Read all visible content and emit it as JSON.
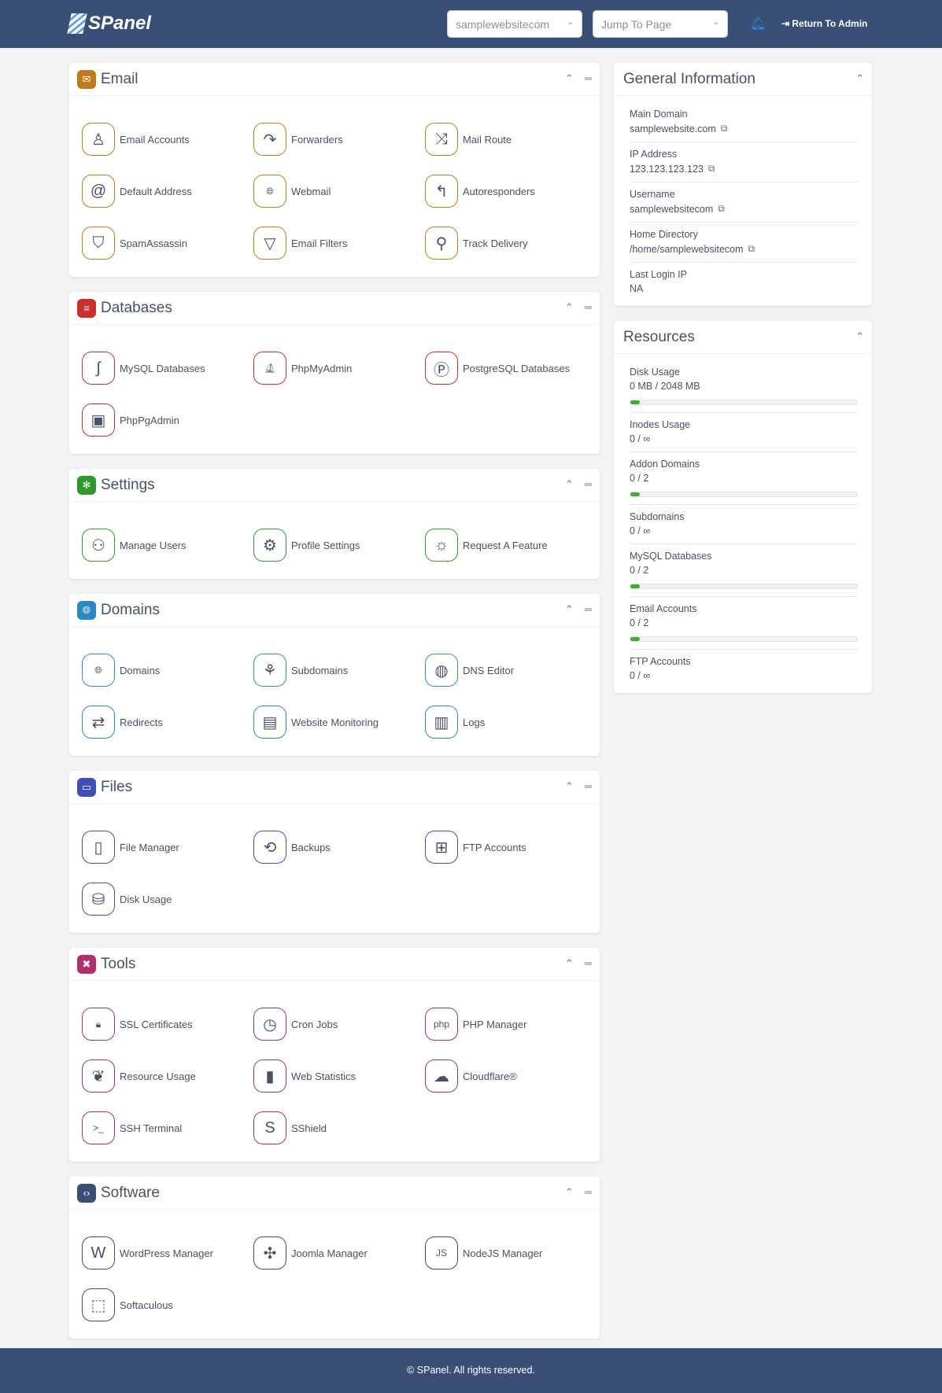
{
  "header": {
    "logo": "SPanel",
    "domain_select": "samplewebsitecom",
    "jump_select": "Jump To Page",
    "return_label": "Return To Admin"
  },
  "sections": [
    {
      "title": "Email",
      "color": "#c07a1a",
      "icon": "envelope-icon",
      "items": [
        {
          "label": "Email Accounts",
          "icon": "user-icon"
        },
        {
          "label": "Forwarders",
          "icon": "forward-arrow-icon"
        },
        {
          "label": "Mail Route",
          "icon": "route-icon"
        },
        {
          "label": "Default Address",
          "icon": "at-icon"
        },
        {
          "label": "Webmail",
          "icon": "globe-icon"
        },
        {
          "label": "Autoresponders",
          "icon": "reply-icon"
        },
        {
          "label": "SpamAssassin",
          "icon": "shield-alert-icon"
        },
        {
          "label": "Email Filters",
          "icon": "filter-icon"
        },
        {
          "label": "Track Delivery",
          "icon": "search-icon"
        }
      ]
    },
    {
      "title": "Databases",
      "color": "#c9302c",
      "icon": "database-icon",
      "items": [
        {
          "label": "MySQL Databases",
          "icon": "dolphin-icon"
        },
        {
          "label": "PhpMyAdmin",
          "icon": "sail-icon"
        },
        {
          "label": "PostgreSQL Databases",
          "icon": "elephant-icon"
        },
        {
          "label": "PhpPgAdmin",
          "icon": "phppgadmin-icon"
        }
      ]
    },
    {
      "title": "Settings",
      "color": "#2e9a2e",
      "icon": "gear-icon",
      "items": [
        {
          "label": "Manage Users",
          "icon": "users-icon"
        },
        {
          "label": "Profile Settings",
          "icon": "user-gear-icon"
        },
        {
          "label": "Request A Feature",
          "icon": "lightbulb-icon"
        }
      ]
    },
    {
      "title": "Domains",
      "color": "#2b8ac4",
      "icon": "globe-icon",
      "items": [
        {
          "label": "Domains",
          "icon": "globe-icon"
        },
        {
          "label": "Subdomains",
          "icon": "sitemap-icon"
        },
        {
          "label": "DNS Editor",
          "icon": "globe-edit-icon"
        },
        {
          "label": "Redirects",
          "icon": "redirect-icon"
        },
        {
          "label": "Website Monitoring",
          "icon": "monitor-icon"
        },
        {
          "label": "Logs",
          "icon": "log-icon"
        }
      ]
    },
    {
      "title": "Files",
      "color": "#3f4fb5",
      "icon": "folder-icon",
      "items": [
        {
          "label": "File Manager",
          "icon": "file-manager-icon"
        },
        {
          "label": "Backups",
          "icon": "backup-icon"
        },
        {
          "label": "FTP Accounts",
          "icon": "network-icon"
        },
        {
          "label": "Disk Usage",
          "icon": "disk-icon"
        }
      ]
    },
    {
      "title": "Tools",
      "color": "#b0306e",
      "icon": "tools-icon",
      "items": [
        {
          "label": "SSL Certificates",
          "icon": "lock-icon"
        },
        {
          "label": "Cron Jobs",
          "icon": "clock-icon"
        },
        {
          "label": "PHP Manager",
          "icon": "php-icon"
        },
        {
          "label": "Resource Usage",
          "icon": "leaf-icon"
        },
        {
          "label": "Web Statistics",
          "icon": "chart-icon"
        },
        {
          "label": "Cloudflare®",
          "icon": "cloud-icon"
        },
        {
          "label": "SSH Terminal",
          "icon": "terminal-icon"
        },
        {
          "label": "SShield",
          "icon": "sshield-icon"
        }
      ]
    },
    {
      "title": "Software",
      "color": "#3a4f75",
      "icon": "code-icon",
      "items": [
        {
          "label": "WordPress Manager",
          "icon": "wordpress-icon"
        },
        {
          "label": "Joomla Manager",
          "icon": "joomla-icon"
        },
        {
          "label": "NodeJS Manager",
          "icon": "nodejs-icon"
        },
        {
          "label": "Softaculous",
          "icon": "softaculous-icon"
        }
      ]
    }
  ],
  "general": {
    "title": "General Information",
    "items": [
      {
        "label": "Main Domain",
        "value": "samplewebsite.com",
        "copy": true
      },
      {
        "label": "IP Address",
        "value": "123.123.123.123",
        "copy": true
      },
      {
        "label": "Username",
        "value": "samplewebsitecom",
        "copy": true
      },
      {
        "label": "Home Directory",
        "value": "/home/samplewebsitecom",
        "copy": true
      },
      {
        "label": "Last Login IP",
        "value": "NA",
        "copy": false
      }
    ]
  },
  "resources": {
    "title": "Resources",
    "bar_color": "#3ab02c",
    "items": [
      {
        "label": "Disk Usage",
        "value": "0 MB / 2048 MB",
        "percent": 0
      },
      {
        "label": "Inodes Usage",
        "value": "0 / ∞"
      },
      {
        "label": "Addon Domains",
        "value": "0 / 2",
        "percent": 0
      },
      {
        "label": "Subdomains",
        "value": "0 / ∞"
      },
      {
        "label": "MySQL Databases",
        "value": "0 / 2",
        "percent": 0
      },
      {
        "label": "Email Accounts",
        "value": "0 / 2",
        "percent": 0
      },
      {
        "label": "FTP Accounts",
        "value": "0 / ∞"
      }
    ]
  },
  "footer": "© SPanel. All rights reserved."
}
